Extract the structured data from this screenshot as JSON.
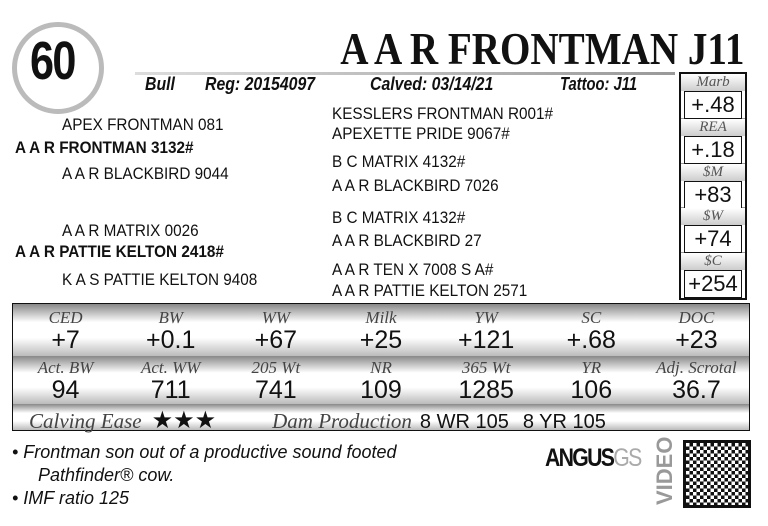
{
  "lot": "60",
  "title": "A A R FRONTMAN J11",
  "info": {
    "sex": "Bull",
    "reg": "Reg: 20154097",
    "calved": "Calved: 03/14/21",
    "tattoo": "Tattoo: J11"
  },
  "pedigree": {
    "sire": "A A R FRONTMAN 3132#",
    "sire_sire": "APEX FRONTMAN 081",
    "sire_dam": "A A R BLACKBIRD 9044",
    "sss": "KESSLERS FRONTMAN R001#",
    "ssd": "APEXETTE PRIDE 9067#",
    "sds": "B C MATRIX 4132#",
    "sdd": "A A R BLACKBIRD 7026",
    "dam": "A A R PATTIE KELTON 2418#",
    "dam_sire": "A A R MATRIX 0026",
    "dam_dam": "K A S PATTIE KELTON 9408",
    "dss": "B C MATRIX 4132#",
    "dsd": "A A R BLACKBIRD 27",
    "dds": "A A R TEN X 7008 S A#",
    "ddd": "A A R PATTIE KELTON 2571"
  },
  "epd_side": [
    {
      "label": "Marb",
      "value": "+.48"
    },
    {
      "label": "REA",
      "value": "+.18"
    },
    {
      "label": "$M",
      "value": "+83"
    },
    {
      "label": "$W",
      "value": "+74"
    },
    {
      "label": "$C",
      "value": "+254"
    }
  ],
  "epd_labels": [
    "CED",
    "BW",
    "WW",
    "Milk",
    "YW",
    "SC",
    "DOC"
  ],
  "epd_values": [
    "+7",
    "+0.1",
    "+67",
    "+25",
    "+121",
    "+.68",
    "+23"
  ],
  "perf_labels": [
    "Act. BW",
    "Act. WW",
    "205 Wt",
    "NR",
    "365 Wt",
    "YR",
    "Adj. Scrotal"
  ],
  "perf_values": [
    "94",
    "711",
    "741",
    "109",
    "1285",
    "106",
    "36.7"
  ],
  "calving_ease_label": "Calving Ease",
  "calving_ease_stars": "★★★",
  "dam_production_label": "Dam Production",
  "dam_wr": "8 WR 105",
  "dam_yr": "8 YR 105",
  "notes": [
    "• Frontman son out of a productive sound footed",
    "Pathfinder® cow.",
    "• IMF ratio 125"
  ],
  "logo": {
    "brand": "ANGUS",
    "suffix": "GS",
    "video": "VIDEO"
  }
}
